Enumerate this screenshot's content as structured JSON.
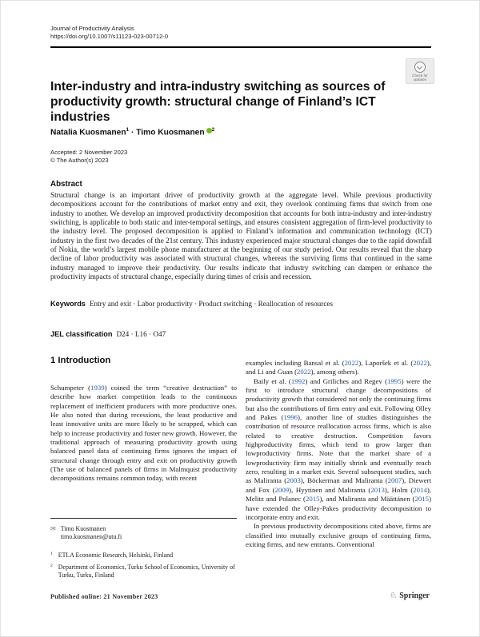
{
  "header": {
    "journal": "Journal of Productivity Analysis",
    "doi": "https://doi.org/10.1007/s11123-023-00712-0"
  },
  "badge": {
    "label": "Check for updates"
  },
  "title": "Inter-industry and intra-industry switching as sources of productivity growth: structural change of Finland’s ICT industries",
  "authors": {
    "author1": "Natalia Kuosmanen",
    "sup1": "1",
    "separator": "·",
    "author2": "Timo Kuosmanen",
    "sup2": "2"
  },
  "dates": {
    "accepted": "Accepted: 2 November 2023",
    "copyright": "© The Author(s) 2023"
  },
  "abstract": {
    "heading": "Abstract",
    "text": "Structural change is an important driver of productivity growth at the aggregate level. While previous productivity decompositions account for the contributions of market entry and exit, they overlook continuing firms that switch from one industry to another. We develop an improved productivity decomposition that accounts for both intra-industry and inter-industry switching, is applicable to both static and inter-temporal settings, and ensures consistent aggregation of firm-level productivity to the industry level. The proposed decomposition is applied to Finland’s information and communication technology (ICT) industry in the first two decades of the 21st century. This industry experienced major structural changes due to the rapid downfall of Nokia, the world’s largest mobile phone manufacturer at the beginning of our study period. Our results reveal that the sharp decline of labor productivity was associated with structural changes, whereas the surviving firms that continued in the same industry managed to improve their productivity. Our results indicate that industry switching can dampen or enhance the productivity impacts of structural change, especially during times of crisis and recession."
  },
  "keywords": {
    "label": "Keywords",
    "text": "Entry and exit · Labor productivity · Product switching · Reallocation of resources"
  },
  "jel": {
    "label": "JEL classification",
    "text": "D24 · L16 · O47"
  },
  "intro": {
    "heading": "1 Introduction",
    "left_paragraphs": [
      [
        {
          "t": "Schumpeter ("
        },
        {
          "t": "1939",
          "c": "cite"
        },
        {
          "t": ") coined the term “creative destruction” to describe how market competition leads to the continuous replacement of inefficient producers with more productive ones. He also noted that during recessions, the least productive and least innovative units are more likely to be scrapped, which can help to increase productivity and foster new growth. However, the traditional approach of measuring productivity growth using balanced panel data of continuing firms ignores the impact of structural change through entry and exit on productivity growth (The use of balanced panels of firms in Malmquist productivity decompositions remains common today, with recent"
        }
      ]
    ],
    "right_paragraphs": [
      [
        {
          "t": "examples including Bansal et al. ("
        },
        {
          "t": "2022",
          "c": "cite"
        },
        {
          "t": "), Laporšek et al. ("
        },
        {
          "t": "2022",
          "c": "cite"
        },
        {
          "t": "), and Li and Guan ("
        },
        {
          "t": "2022",
          "c": "cite"
        },
        {
          "t": "), among others)."
        }
      ],
      [
        {
          "t": "Baily et al. ("
        },
        {
          "t": "1992",
          "c": "cite"
        },
        {
          "t": ") and Griliches and Regev ("
        },
        {
          "t": "1995",
          "c": "cite"
        },
        {
          "t": ") were the first to introduce structural change decompositions of productivity growth that considered not only the continuing firms but also the contributions of firm entry and exit. Following Olley and Pakes ("
        },
        {
          "t": "1996",
          "c": "cite"
        },
        {
          "t": "), another line of studies distinguishes the contribution of resource reallocation across firms, which is also related to creative destruction. Competition favors highproductivity firms, which tend to grow larger than lowproductivity firms. Note that the market share of a lowproductivity firm may initially shrink and eventually reach zero, resulting in a market exit. Several subsequent studies, such as Maliranta ("
        },
        {
          "t": "2003",
          "c": "cite"
        },
        {
          "t": "), Böckerman and Maliranta ("
        },
        {
          "t": "2007",
          "c": "cite"
        },
        {
          "t": "), Diewert and Fox ("
        },
        {
          "t": "2009",
          "c": "cite"
        },
        {
          "t": "), Hyytinen and Maliranta ("
        },
        {
          "t": "2013",
          "c": "cite"
        },
        {
          "t": "), Holm ("
        },
        {
          "t": "2014",
          "c": "cite"
        },
        {
          "t": "), Melitz and Polanec ("
        },
        {
          "t": "2015",
          "c": "cite"
        },
        {
          "t": "), and Maliranta and Määttänen ("
        },
        {
          "t": "2015",
          "c": "cite"
        },
        {
          "t": ") have extended the Olley-Pakes productivity decomposition to incorporate entry and exit."
        }
      ],
      [
        {
          "t": "In previous productivity decompositions cited above, firms are classified into mutually exclusive groups of continuing firms, exiting firms, and new entrants. Conventional"
        }
      ]
    ]
  },
  "footnotes": {
    "corresponding_name": "Timo Kuosmanen",
    "corresponding_email": "timo.kuosmanen@utu.fi",
    "aff1_num": "1",
    "aff1": "ETLA Economic Research, Helsinki, Finland",
    "aff2_num": "2",
    "aff2": "Department of Economics, Turku School of Economics, University of Turku, Turku, Finland"
  },
  "footer": {
    "published": "Published online: 21 November 2023",
    "publisher": "Springer"
  }
}
